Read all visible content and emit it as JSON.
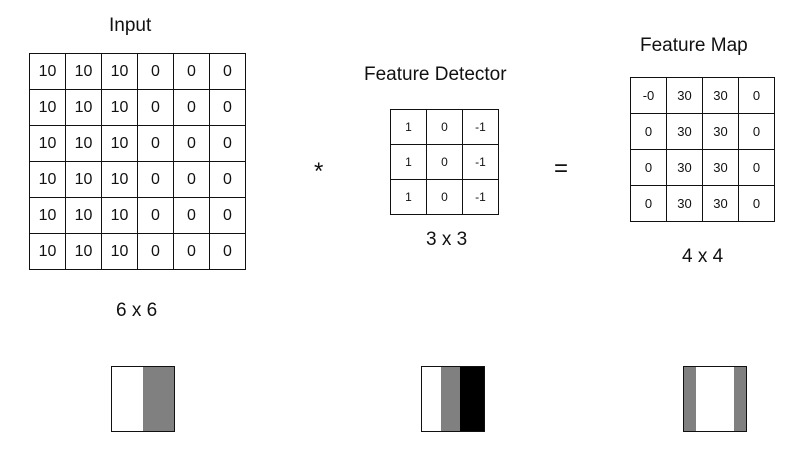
{
  "input": {
    "title": "Input",
    "size": "6 x 6",
    "rows": [
      [
        "10",
        "10",
        "10",
        "0",
        "0",
        "0"
      ],
      [
        "10",
        "10",
        "10",
        "0",
        "0",
        "0"
      ],
      [
        "10",
        "10",
        "10",
        "0",
        "0",
        "0"
      ],
      [
        "10",
        "10",
        "10",
        "0",
        "0",
        "0"
      ],
      [
        "10",
        "10",
        "10",
        "0",
        "0",
        "0"
      ],
      [
        "10",
        "10",
        "10",
        "0",
        "0",
        "0"
      ]
    ]
  },
  "operator_conv": "*",
  "detector": {
    "title": "Feature Detector",
    "size": "3 x 3",
    "rows": [
      [
        "1",
        "0",
        "-1"
      ],
      [
        "1",
        "0",
        "-1"
      ],
      [
        "1",
        "0",
        "-1"
      ]
    ]
  },
  "operator_eq": "=",
  "feature_map": {
    "title": "Feature Map",
    "size": "4 x 4",
    "rows": [
      [
        "-0",
        "30",
        "30",
        "0"
      ],
      [
        "0",
        "30",
        "30",
        "0"
      ],
      [
        "0",
        "30",
        "30",
        "0"
      ],
      [
        "0",
        "30",
        "30",
        "0"
      ]
    ]
  },
  "swatches": {
    "input": [
      "#ffffff",
      "#808080"
    ],
    "detector": [
      "#ffffff",
      "#808080",
      "#000000"
    ],
    "feature_map": [
      "#808080",
      "#ffffff",
      "#808080"
    ]
  }
}
